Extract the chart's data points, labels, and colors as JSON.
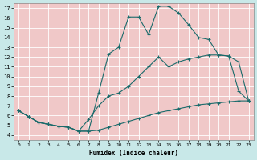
{
  "xlabel": "Humidex (Indice chaleur)",
  "bg_color": "#c8e8e8",
  "plot_bg_color": "#f0c8c8",
  "grid_color": "#ffffff",
  "line_color": "#1a6b6b",
  "xlim": [
    -0.5,
    23.5
  ],
  "ylim": [
    3.5,
    17.5
  ],
  "xticks": [
    0,
    1,
    2,
    3,
    4,
    5,
    6,
    7,
    8,
    9,
    10,
    11,
    12,
    13,
    14,
    15,
    16,
    17,
    18,
    19,
    20,
    21,
    22,
    23
  ],
  "yticks": [
    4,
    5,
    6,
    7,
    8,
    9,
    10,
    11,
    12,
    13,
    14,
    15,
    16,
    17
  ],
  "line1_x": [
    0,
    1,
    2,
    3,
    4,
    5,
    6,
    7,
    8,
    9,
    10,
    11,
    12,
    13,
    14,
    15,
    16,
    17,
    18,
    19,
    20,
    21,
    22,
    23
  ],
  "line1_y": [
    6.5,
    5.9,
    5.3,
    5.1,
    4.9,
    4.8,
    4.4,
    4.4,
    8.3,
    12.3,
    13.0,
    16.1,
    16.1,
    14.3,
    17.2,
    17.2,
    16.5,
    15.3,
    14.0,
    13.8,
    12.2,
    12.1,
    8.5,
    7.5
  ],
  "line2_x": [
    0,
    1,
    2,
    3,
    4,
    5,
    6,
    7,
    8,
    9,
    10,
    11,
    12,
    13,
    14,
    15,
    16,
    17,
    18,
    19,
    20,
    21,
    22,
    23
  ],
  "line2_y": [
    6.5,
    5.9,
    5.3,
    5.1,
    4.9,
    4.8,
    4.4,
    5.6,
    7.0,
    8.0,
    8.3,
    9.0,
    10.0,
    11.0,
    12.0,
    11.0,
    11.5,
    11.8,
    12.0,
    12.2,
    12.2,
    12.1,
    11.5,
    7.5
  ],
  "line3_x": [
    0,
    1,
    2,
    3,
    4,
    5,
    6,
    7,
    8,
    9,
    10,
    11,
    12,
    13,
    14,
    15,
    16,
    17,
    18,
    19,
    20,
    21,
    22,
    23
  ],
  "line3_y": [
    6.5,
    5.9,
    5.3,
    5.1,
    4.9,
    4.8,
    4.4,
    4.4,
    4.5,
    4.8,
    5.1,
    5.4,
    5.7,
    6.0,
    6.3,
    6.5,
    6.7,
    6.9,
    7.1,
    7.2,
    7.3,
    7.4,
    7.5,
    7.5
  ],
  "figwidth": 3.2,
  "figheight": 2.0,
  "dpi": 100
}
